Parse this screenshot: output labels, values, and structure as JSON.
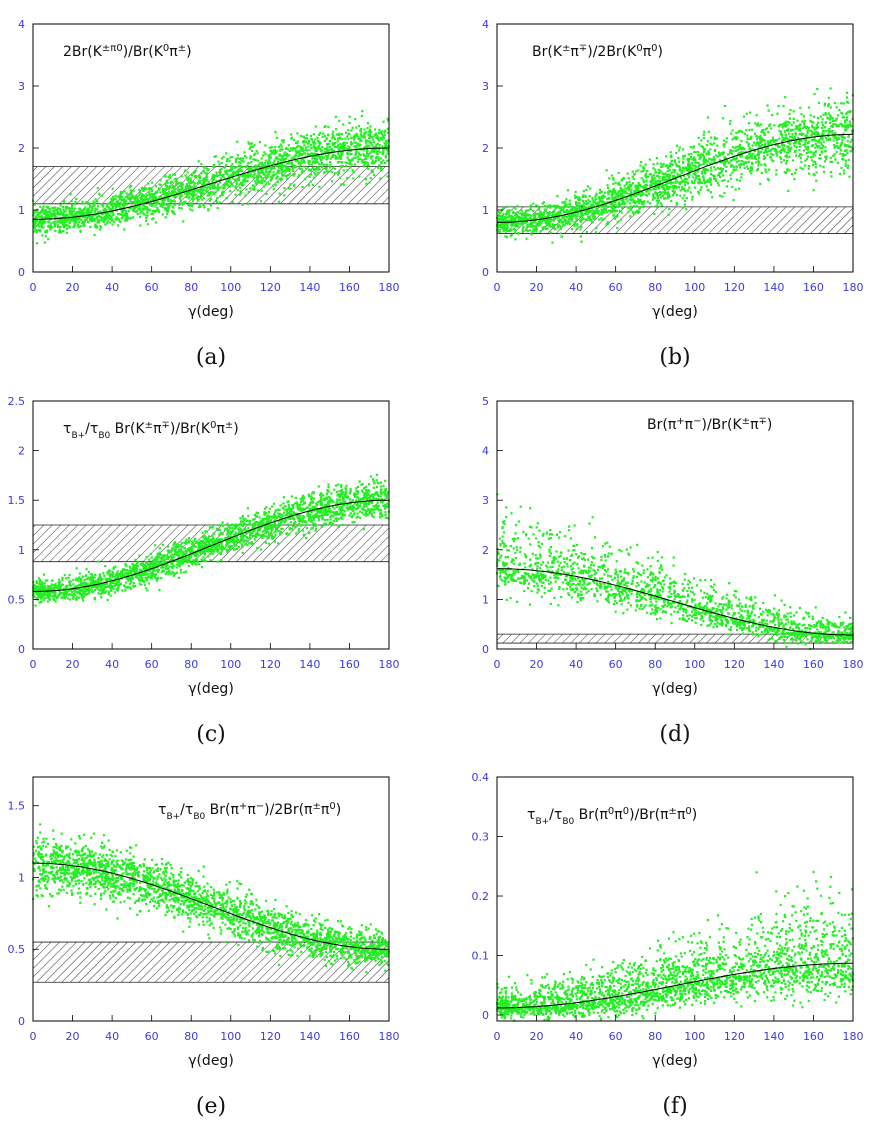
{
  "chart_data": [
    {
      "type": "scatter",
      "panel_label": "(a)",
      "title_parts": [
        [
          "2Br(K",
          ""
        ],
        [
          "±π",
          "sup"
        ],
        [
          "0",
          "sup"
        ],
        [
          ")/Br(K",
          ""
        ],
        [
          "0",
          "sup"
        ],
        [
          "π",
          ""
        ],
        [
          "±",
          "sup"
        ],
        [
          ")",
          ""
        ]
      ],
      "xlabel": "γ(deg)",
      "xlim": [
        0,
        180
      ],
      "ylim": [
        0,
        4
      ],
      "xticks": [
        "0",
        "20",
        "40",
        "60",
        "80",
        "100",
        "120",
        "140",
        "160",
        "180"
      ],
      "yticks": [
        "0",
        "1",
        "2",
        "3",
        "4"
      ],
      "band": [
        1.1,
        1.7
      ],
      "curve": {
        "center": 0.85,
        "end": 2.0
      },
      "scatter": {
        "spread": 0.11,
        "spread_end": 0.22,
        "count": 2400
      },
      "point_color": "#22ee22"
    },
    {
      "type": "scatter",
      "panel_label": "(b)",
      "title_parts": [
        [
          "Br(K",
          ""
        ],
        [
          "±",
          "sup"
        ],
        [
          "π",
          ""
        ],
        [
          "∓",
          "sup"
        ],
        [
          ")/2Br(K",
          ""
        ],
        [
          "0",
          "sup"
        ],
        [
          "π",
          ""
        ],
        [
          "0",
          "sup"
        ],
        [
          ")",
          ""
        ]
      ],
      "xlabel": "γ(deg)",
      "xlim": [
        0,
        180
      ],
      "ylim": [
        0,
        4
      ],
      "xticks": [
        "0",
        "20",
        "40",
        "60",
        "80",
        "100",
        "120",
        "140",
        "160",
        "180"
      ],
      "yticks": [
        "0",
        "1",
        "2",
        "3",
        "4"
      ],
      "band": [
        0.62,
        1.05
      ],
      "curve": {
        "center": 0.8,
        "end": 2.22
      },
      "scatter": {
        "spread": 0.1,
        "spread_end": 0.3,
        "count": 2400
      },
      "point_color": "#22ee22"
    },
    {
      "type": "scatter",
      "panel_label": "(c)",
      "title_parts": [
        [
          "τ",
          ""
        ],
        [
          "B+",
          "sub"
        ],
        [
          "/τ",
          ""
        ],
        [
          "B0",
          "sub"
        ],
        [
          " Br(K",
          ""
        ],
        [
          "±",
          "sup"
        ],
        [
          "π",
          ""
        ],
        [
          "∓",
          "sup"
        ],
        [
          ")/Br(K",
          ""
        ],
        [
          "0",
          "sup"
        ],
        [
          "π",
          ""
        ],
        [
          "±",
          "sup"
        ],
        [
          ")",
          ""
        ]
      ],
      "xlabel": "γ(deg)",
      "xlim": [
        0,
        180
      ],
      "ylim": [
        0,
        2.5
      ],
      "xticks": [
        "0",
        "20",
        "40",
        "60",
        "80",
        "100",
        "120",
        "140",
        "160",
        "180"
      ],
      "yticks": [
        "0",
        "0.5",
        "1",
        "1.5",
        "2",
        "2.5"
      ],
      "band": [
        0.88,
        1.25
      ],
      "curve": {
        "center": 0.58,
        "end": 1.5
      },
      "scatter": {
        "spread": 0.055,
        "spread_end": 0.1,
        "count": 2400
      },
      "point_color": "#22ee22"
    },
    {
      "type": "scatter",
      "panel_label": "(d)",
      "title_parts": [
        [
          "Br(π",
          ""
        ],
        [
          "+",
          "sup"
        ],
        [
          "π",
          ""
        ],
        [
          "−",
          "sup"
        ],
        [
          ")/Br(K",
          ""
        ],
        [
          "±",
          "sup"
        ],
        [
          "π",
          ""
        ],
        [
          "∓",
          "sup"
        ],
        [
          ")",
          ""
        ]
      ],
      "xlabel": "γ(deg)",
      "xlim": [
        0,
        180
      ],
      "ylim": [
        0,
        5
      ],
      "xticks": [
        "0",
        "20",
        "40",
        "60",
        "80",
        "100",
        "120",
        "140",
        "160",
        "180"
      ],
      "yticks": [
        "0",
        "1",
        "2",
        "3",
        "4",
        "5"
      ],
      "band": [
        0.12,
        0.3
      ],
      "curve": {
        "center": 1.62,
        "end": 0.28
      },
      "scatter": {
        "spread": 0.45,
        "spread_end": 0.12,
        "count": 1700
      },
      "point_color": "#22ee22"
    },
    {
      "type": "scatter",
      "panel_label": "(e)",
      "title_parts": [
        [
          "τ",
          ""
        ],
        [
          "B+",
          "sub"
        ],
        [
          "/τ",
          ""
        ],
        [
          "B0",
          "sub"
        ],
        [
          " Br(π",
          ""
        ],
        [
          "+",
          "sup"
        ],
        [
          "π",
          ""
        ],
        [
          "−",
          "sup"
        ],
        [
          ")/2Br(π",
          ""
        ],
        [
          "±",
          "sup"
        ],
        [
          "π",
          ""
        ],
        [
          "0",
          "sup"
        ],
        [
          ")",
          ""
        ]
      ],
      "xlabel": "γ(deg)",
      "xlim": [
        0,
        180
      ],
      "ylim": [
        0,
        1.7
      ],
      "xticks": [
        "0",
        "20",
        "40",
        "60",
        "80",
        "100",
        "120",
        "140",
        "160",
        "180"
      ],
      "yticks": [
        "0",
        "0.5",
        "1",
        "1.5"
      ],
      "band": [
        0.27,
        0.55
      ],
      "curve": {
        "center": 1.1,
        "end": 0.5
      },
      "scatter": {
        "spread": 0.1,
        "spread_end": 0.06,
        "count": 2400
      },
      "point_color": "#22ee22"
    },
    {
      "type": "scatter",
      "panel_label": "(f)",
      "title_parts": [
        [
          "τ",
          ""
        ],
        [
          "B+",
          "sub"
        ],
        [
          "/τ",
          ""
        ],
        [
          "B0",
          "sub"
        ],
        [
          " Br(π",
          ""
        ],
        [
          "0",
          "sup"
        ],
        [
          "π",
          ""
        ],
        [
          "0",
          "sup"
        ],
        [
          ")/Br(π",
          ""
        ],
        [
          "±",
          "sup"
        ],
        [
          "π",
          ""
        ],
        [
          "0",
          "sup"
        ],
        [
          ")",
          ""
        ]
      ],
      "xlabel": "γ(deg)",
      "xlim": [
        0,
        180
      ],
      "ylim": [
        -0.01,
        0.4
      ],
      "xticks": [
        "0",
        "20",
        "40",
        "60",
        "80",
        "100",
        "120",
        "140",
        "160",
        "180"
      ],
      "yticks": [
        "0",
        "0.1",
        "0.2",
        "0.3",
        "0.4"
      ],
      "band": null,
      "curve": {
        "center": 0.012,
        "end": 0.087
      },
      "scatter": {
        "spread": 0.012,
        "spread_end": 0.045,
        "count": 2400
      },
      "point_color": "#22ee22"
    }
  ]
}
